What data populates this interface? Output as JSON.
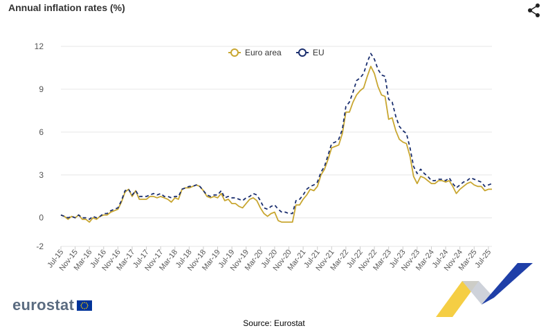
{
  "header": {
    "title": "Annual inflation rates (%)",
    "share_icon": "share-icon"
  },
  "footer": {
    "logo_text": "eurostat",
    "source": "Source: Eurostat"
  },
  "colors": {
    "euro_area": "#c8a630",
    "eu": "#1a2e6e",
    "grid": "#e6e6e6",
    "axis_text": "#555555",
    "deco_yellow": "#f3c623",
    "deco_blue": "#1f3fa8"
  },
  "chart_data": {
    "type": "line",
    "title": "Annual inflation rates (%)",
    "xlabel": "",
    "ylabel": "",
    "ylim": [
      -2,
      12
    ],
    "yticks": [
      -2,
      0,
      3,
      6,
      9,
      12
    ],
    "grid": true,
    "legend": "top-center",
    "x_tick_labels": [
      "Jul-15",
      "Nov-15",
      "Mar-16",
      "Jul-16",
      "Nov-16",
      "Mar-17",
      "Jul-17",
      "Nov-17",
      "Mar-18",
      "Jul-18",
      "Nov-18",
      "Mar-19",
      "Jul-19",
      "Nov-19",
      "Mar-20",
      "Jul-20",
      "Nov-20",
      "Mar-21",
      "Jul-21",
      "Nov-21",
      "Mar-22",
      "Jul-22",
      "Nov-22",
      "Mar-23",
      "Jul-23",
      "Nov-23",
      "Mar-24",
      "Jul-24",
      "Nov-24",
      "Mar-25",
      "Jul-25"
    ],
    "series": [
      {
        "name": "Euro area",
        "style": "solid",
        "values": [
          0.2,
          0.1,
          -0.1,
          0.1,
          0.0,
          0.2,
          -0.1,
          -0.1,
          -0.3,
          0.0,
          -0.1,
          0.1,
          0.2,
          0.2,
          0.4,
          0.5,
          0.6,
          1.1,
          1.8,
          2.0,
          1.5,
          1.9,
          1.3,
          1.3,
          1.3,
          1.5,
          1.5,
          1.4,
          1.5,
          1.4,
          1.3,
          1.1,
          1.4,
          1.3,
          2.0,
          2.1,
          2.1,
          2.2,
          2.3,
          2.2,
          1.9,
          1.5,
          1.4,
          1.5,
          1.4,
          1.7,
          1.2,
          1.3,
          1.0,
          1.0,
          0.8,
          0.7,
          1.0,
          1.3,
          1.4,
          1.2,
          0.7,
          0.3,
          0.1,
          0.3,
          0.4,
          -0.2,
          -0.3,
          -0.3,
          -0.3,
          -0.3,
          0.9,
          0.9,
          1.3,
          1.6,
          2.0,
          1.9,
          2.2,
          3.0,
          3.4,
          4.1,
          4.9,
          5.0,
          5.1,
          5.9,
          7.4,
          7.4,
          8.1,
          8.6,
          8.9,
          9.1,
          9.9,
          10.6,
          10.1,
          9.2,
          8.6,
          8.5,
          6.9,
          7.0,
          6.1,
          5.5,
          5.3,
          5.2,
          4.3,
          2.9,
          2.4,
          2.9,
          2.8,
          2.6,
          2.4,
          2.4,
          2.6,
          2.6,
          2.5,
          2.6,
          2.2,
          1.7,
          2.0,
          2.2,
          2.4,
          2.5,
          2.3,
          2.2,
          2.2,
          1.9,
          2.0,
          2.0
        ],
        "note": "monthly values Jul-15 to Jul-25"
      },
      {
        "name": "EU",
        "style": "dashed",
        "values": [
          0.2,
          0.1,
          0.0,
          0.1,
          0.0,
          0.2,
          0.0,
          0.0,
          -0.1,
          0.1,
          0.0,
          0.1,
          0.3,
          0.3,
          0.5,
          0.6,
          0.7,
          1.2,
          1.9,
          2.0,
          1.6,
          1.9,
          1.5,
          1.5,
          1.5,
          1.6,
          1.7,
          1.6,
          1.7,
          1.5,
          1.5,
          1.4,
          1.5,
          1.5,
          2.0,
          2.1,
          2.2,
          2.2,
          2.3,
          2.2,
          1.9,
          1.6,
          1.5,
          1.6,
          1.6,
          1.9,
          1.4,
          1.5,
          1.4,
          1.4,
          1.3,
          1.2,
          1.4,
          1.5,
          1.7,
          1.6,
          1.2,
          0.7,
          0.6,
          0.8,
          0.9,
          0.6,
          0.4,
          0.4,
          0.3,
          0.3,
          1.2,
          1.3,
          1.6,
          2.0,
          2.2,
          2.3,
          2.5,
          3.2,
          3.6,
          4.4,
          5.2,
          5.3,
          5.5,
          6.2,
          7.8,
          8.1,
          8.8,
          9.6,
          9.8,
          10.1,
          10.9,
          11.5,
          11.1,
          10.4,
          10.0,
          9.9,
          8.3,
          8.1,
          7.1,
          6.4,
          6.1,
          5.9,
          4.9,
          3.6,
          3.1,
          3.4,
          3.1,
          2.9,
          2.6,
          2.6,
          2.7,
          2.7,
          2.6,
          2.8,
          2.4,
          2.1,
          2.3,
          2.5,
          2.6,
          2.8,
          2.7,
          2.6,
          2.5,
          2.2,
          2.3,
          2.4
        ]
      }
    ]
  }
}
